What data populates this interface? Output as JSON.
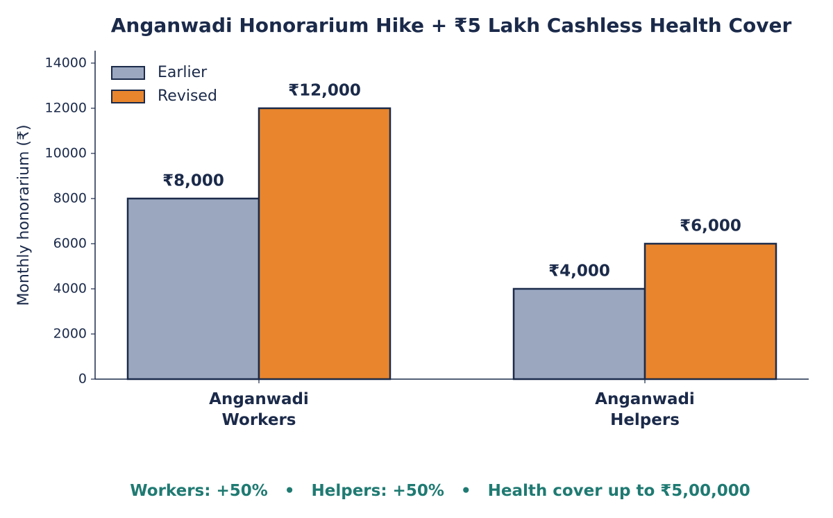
{
  "chart_data": {
    "type": "bar",
    "title": "Anganwadi Honorarium Hike + ₹5 Lakh Cashless Health Cover",
    "y_label": "Monthly honorarium (₹)",
    "categories": [
      "Anganwadi\nWorkers",
      "Anganwadi\nHelpers"
    ],
    "series": [
      {
        "name": "Earlier",
        "color": "#9aa7bf",
        "values": [
          8000,
          4000
        ],
        "value_labels": [
          "₹8,000",
          "₹4,000"
        ]
      },
      {
        "name": "Revised",
        "color": "#e8852d",
        "values": [
          12000,
          6000
        ],
        "value_labels": [
          "₹12,000",
          "₹6,000"
        ]
      }
    ],
    "ylim": [
      0,
      14550
    ],
    "yticks": [
      0,
      2000,
      4000,
      6000,
      8000,
      10000,
      12000,
      14000
    ],
    "legend": "upper-left",
    "annotation": "Workers: +50%   •   Helpers: +50%   •   Health cover up to ₹5,00,000"
  }
}
